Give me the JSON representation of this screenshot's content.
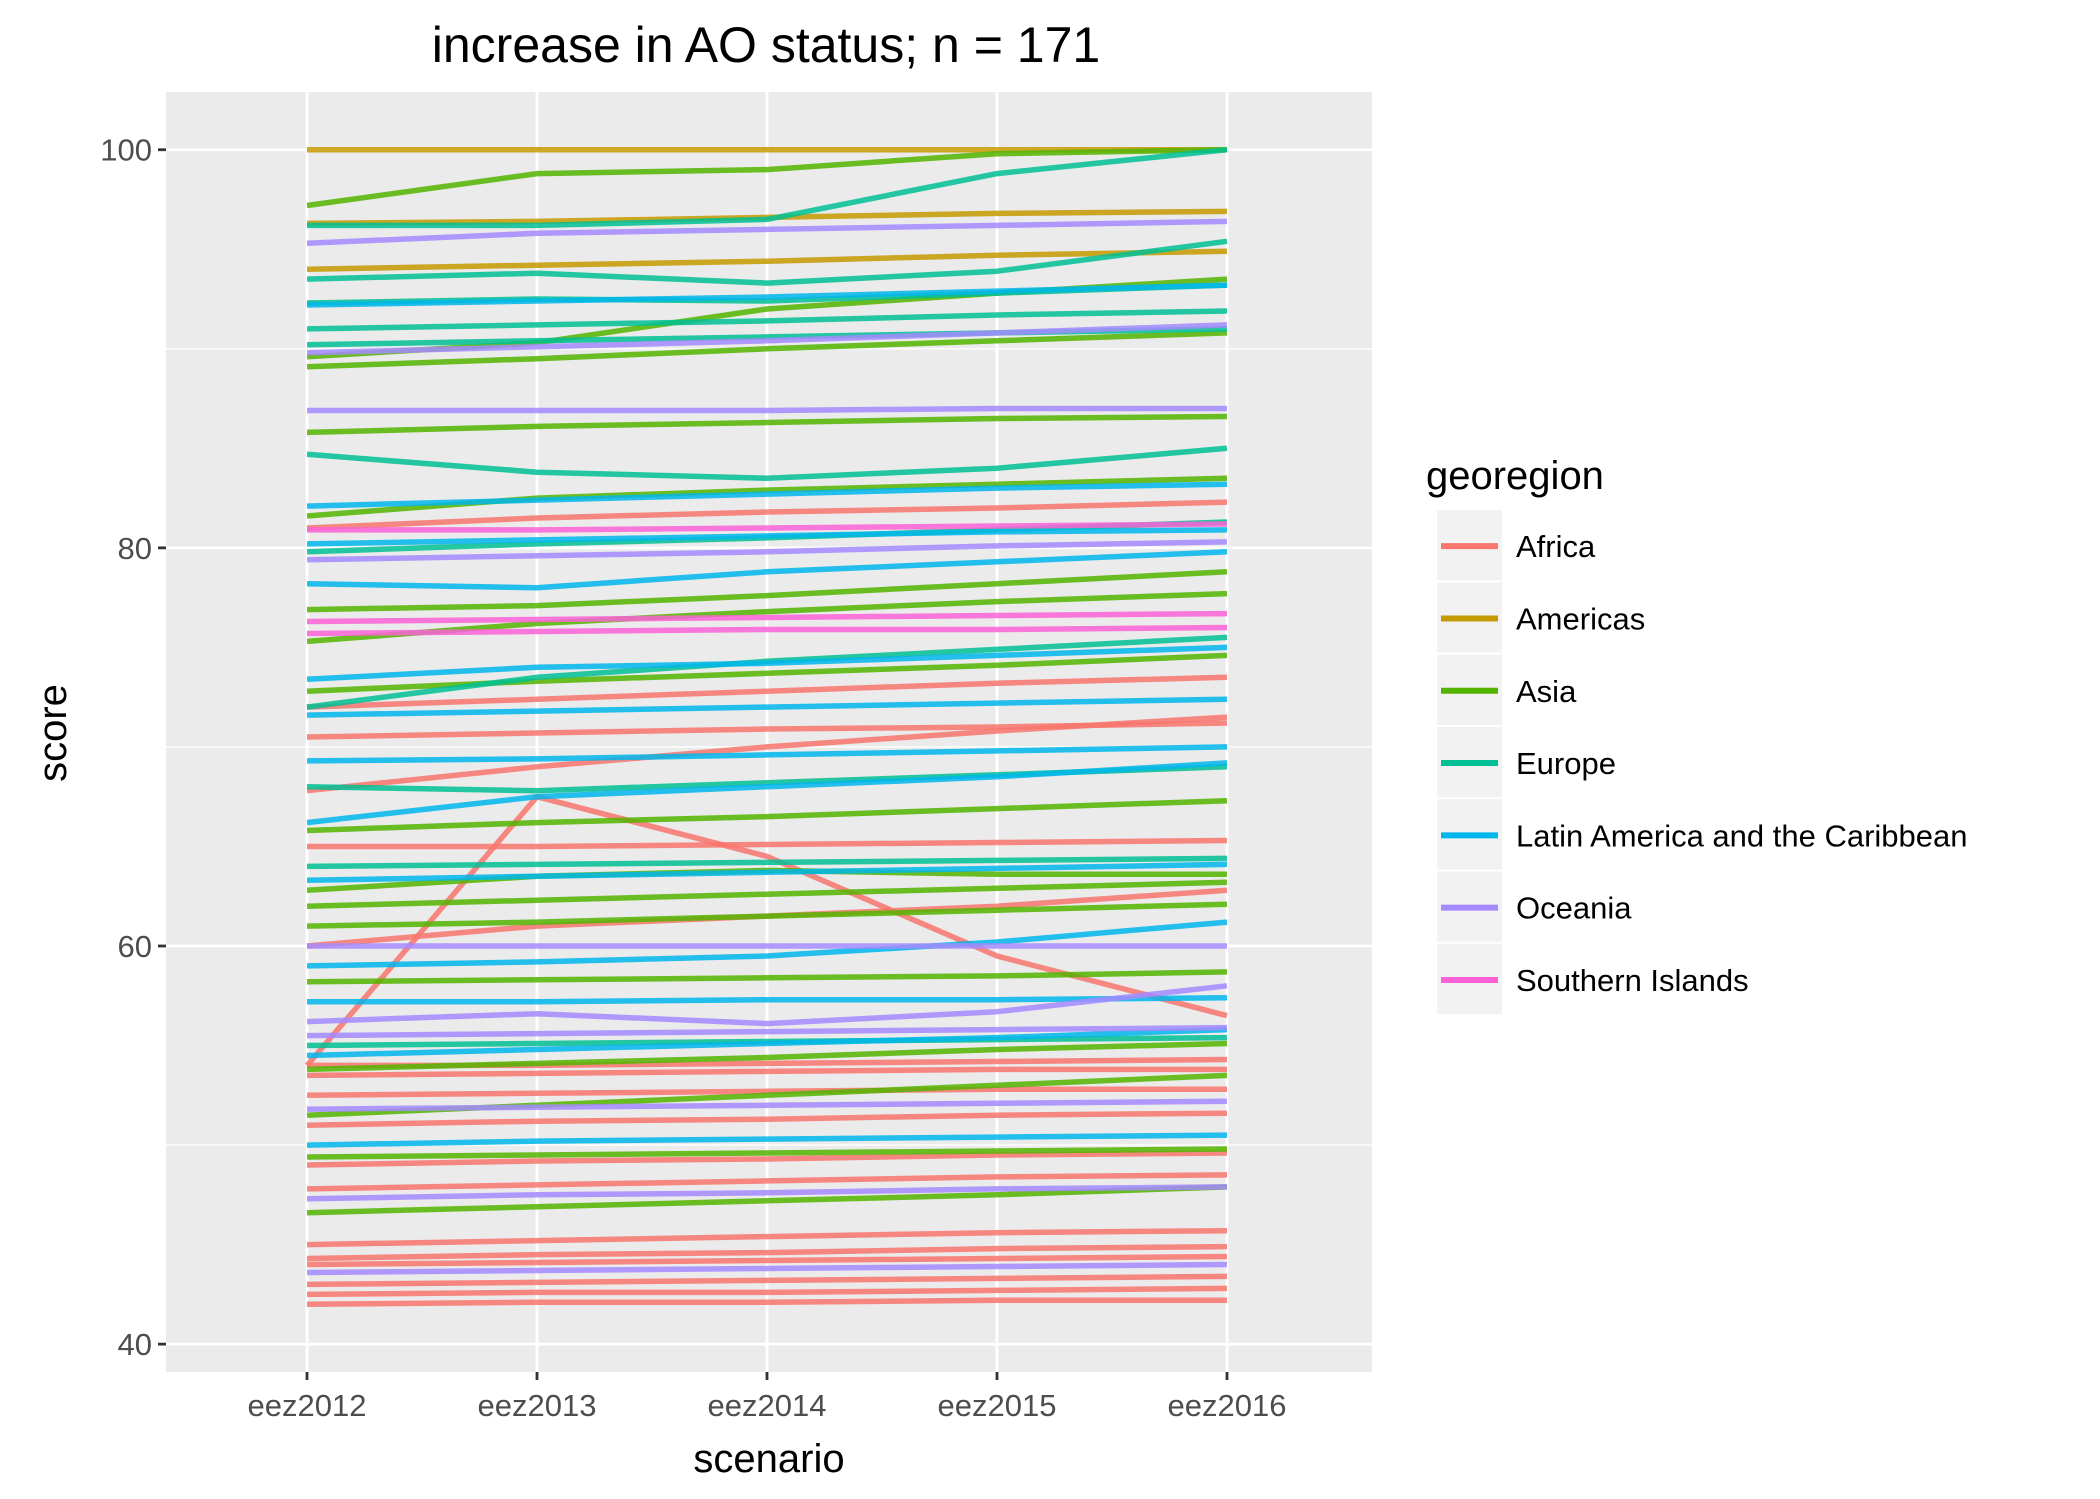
{
  "chart_data": {
    "type": "line",
    "title": "increase in AO status; n = 171",
    "xlabel": "scenario",
    "ylabel": "score",
    "categories": [
      "eez2012",
      "eez2013",
      "eez2014",
      "eez2015",
      "eez2016"
    ],
    "ylim": [
      38.6,
      102.9
    ],
    "yticks": [
      40,
      60,
      80,
      100
    ],
    "grid": true,
    "legend": {
      "title": "georegion",
      "position": "right",
      "entries": [
        {
          "name": "Africa",
          "color": "#F8766D"
        },
        {
          "name": "Americas",
          "color": "#C49A00"
        },
        {
          "name": "Asia",
          "color": "#53B400"
        },
        {
          "name": "Europe",
          "color": "#00C094"
        },
        {
          "name": "Latin America and the Caribbean",
          "color": "#00B6EB"
        },
        {
          "name": "Oceania",
          "color": "#A58AFF"
        },
        {
          "name": "Southern Islands",
          "color": "#FB61D7"
        }
      ]
    },
    "series": [
      {
        "group": "Africa",
        "values": [
          54.0,
          67.5,
          64.5,
          59.5,
          56.5
        ]
      },
      {
        "group": "Africa",
        "values": [
          67.8,
          69.0,
          70.0,
          70.8,
          71.5
        ]
      },
      {
        "group": "Africa",
        "values": [
          72.0,
          72.4,
          72.8,
          73.2,
          73.5
        ]
      },
      {
        "group": "Africa",
        "values": [
          70.5,
          70.7,
          70.9,
          71.0,
          71.2
        ]
      },
      {
        "group": "Africa",
        "values": [
          65.0,
          65.0,
          65.1,
          65.2,
          65.3
        ]
      },
      {
        "group": "Africa",
        "values": [
          60.0,
          61.0,
          61.5,
          62.0,
          62.8
        ]
      },
      {
        "group": "Africa",
        "values": [
          54.0,
          54.0,
          54.1,
          54.2,
          54.3
        ]
      },
      {
        "group": "Africa",
        "values": [
          53.5,
          53.6,
          53.7,
          53.8,
          53.8
        ]
      },
      {
        "group": "Africa",
        "values": [
          52.5,
          52.6,
          52.7,
          52.8,
          52.8
        ]
      },
      {
        "group": "Africa",
        "values": [
          51.0,
          51.2,
          51.3,
          51.5,
          51.6
        ]
      },
      {
        "group": "Africa",
        "values": [
          49.0,
          49.2,
          49.3,
          49.5,
          49.6
        ]
      },
      {
        "group": "Africa",
        "values": [
          47.8,
          48.0,
          48.2,
          48.4,
          48.5
        ]
      },
      {
        "group": "Africa",
        "values": [
          45.0,
          45.2,
          45.4,
          45.6,
          45.7
        ]
      },
      {
        "group": "Africa",
        "values": [
          44.3,
          44.5,
          44.6,
          44.8,
          44.9
        ]
      },
      {
        "group": "Africa",
        "values": [
          44.0,
          44.1,
          44.2,
          44.3,
          44.4
        ]
      },
      {
        "group": "Africa",
        "values": [
          43.0,
          43.1,
          43.2,
          43.3,
          43.4
        ]
      },
      {
        "group": "Africa",
        "values": [
          42.5,
          42.6,
          42.6,
          42.7,
          42.8
        ]
      },
      {
        "group": "Africa",
        "values": [
          42.0,
          42.1,
          42.1,
          42.2,
          42.2
        ]
      },
      {
        "group": "Africa",
        "values": [
          81.0,
          81.5,
          81.8,
          82.0,
          82.3
        ]
      },
      {
        "group": "Americas",
        "values": [
          100.0,
          100.0,
          100.0,
          100.0,
          100.0
        ]
      },
      {
        "group": "Americas",
        "values": [
          96.3,
          96.4,
          96.6,
          96.8,
          96.9
        ]
      },
      {
        "group": "Americas",
        "values": [
          94.0,
          94.2,
          94.4,
          94.7,
          94.9
        ]
      },
      {
        "group": "Asia",
        "values": [
          97.2,
          98.8,
          99.0,
          99.8,
          100.0
        ]
      },
      {
        "group": "Asia",
        "values": [
          89.1,
          89.5,
          90.0,
          90.4,
          90.8
        ]
      },
      {
        "group": "Asia",
        "values": [
          89.6,
          90.3,
          92.0,
          92.8,
          93.5
        ]
      },
      {
        "group": "Asia",
        "values": [
          85.8,
          86.1,
          86.3,
          86.5,
          86.6
        ]
      },
      {
        "group": "Asia",
        "values": [
          81.6,
          82.5,
          82.9,
          83.2,
          83.5
        ]
      },
      {
        "group": "Asia",
        "values": [
          76.9,
          77.1,
          77.6,
          78.2,
          78.8
        ]
      },
      {
        "group": "Asia",
        "values": [
          75.3,
          76.2,
          76.8,
          77.3,
          77.7
        ]
      },
      {
        "group": "Asia",
        "values": [
          72.8,
          73.3,
          73.7,
          74.1,
          74.6
        ]
      },
      {
        "group": "Asia",
        "values": [
          65.8,
          66.2,
          66.5,
          66.9,
          67.3
        ]
      },
      {
        "group": "Asia",
        "values": [
          62.8,
          63.5,
          63.8,
          63.6,
          63.6
        ]
      },
      {
        "group": "Asia",
        "values": [
          62.0,
          62.3,
          62.6,
          62.9,
          63.2
        ]
      },
      {
        "group": "Asia",
        "values": [
          61.0,
          61.2,
          61.5,
          61.8,
          62.1
        ]
      },
      {
        "group": "Asia",
        "values": [
          58.2,
          58.3,
          58.4,
          58.5,
          58.7
        ]
      },
      {
        "group": "Asia",
        "values": [
          53.8,
          54.1,
          54.4,
          54.8,
          55.1
        ]
      },
      {
        "group": "Asia",
        "values": [
          51.5,
          52.0,
          52.5,
          53.0,
          53.5
        ]
      },
      {
        "group": "Asia",
        "values": [
          49.4,
          49.5,
          49.6,
          49.7,
          49.8
        ]
      },
      {
        "group": "Asia",
        "values": [
          46.6,
          46.9,
          47.2,
          47.5,
          47.9
        ]
      },
      {
        "group": "Europe",
        "values": [
          96.2,
          96.2,
          96.5,
          98.8,
          100.0
        ]
      },
      {
        "group": "Europe",
        "values": [
          93.5,
          93.8,
          93.3,
          93.9,
          95.4
        ]
      },
      {
        "group": "Europe",
        "values": [
          92.3,
          92.5,
          92.4,
          92.8,
          93.2
        ]
      },
      {
        "group": "Europe",
        "values": [
          91.0,
          91.2,
          91.4,
          91.7,
          91.9
        ]
      },
      {
        "group": "Europe",
        "values": [
          90.2,
          90.4,
          90.6,
          90.8,
          91.0
        ]
      },
      {
        "group": "Europe",
        "values": [
          84.7,
          83.8,
          83.5,
          84.0,
          85.0
        ]
      },
      {
        "group": "Europe",
        "values": [
          79.8,
          80.2,
          80.5,
          80.9,
          81.3
        ]
      },
      {
        "group": "Europe",
        "values": [
          72.0,
          73.5,
          74.3,
          74.9,
          75.5
        ]
      },
      {
        "group": "Europe",
        "values": [
          68.0,
          67.8,
          68.2,
          68.6,
          69.0
        ]
      },
      {
        "group": "Europe",
        "values": [
          64.0,
          64.1,
          64.2,
          64.3,
          64.4
        ]
      },
      {
        "group": "Europe",
        "values": [
          55.0,
          55.1,
          55.2,
          55.3,
          55.4
        ]
      },
      {
        "group": "Latin America and the Caribbean",
        "values": [
          92.2,
          92.4,
          92.6,
          92.9,
          93.2
        ]
      },
      {
        "group": "Latin America and the Caribbean",
        "values": [
          82.1,
          82.4,
          82.7,
          83.0,
          83.2
        ]
      },
      {
        "group": "Latin America and the Caribbean",
        "values": [
          80.2,
          80.4,
          80.6,
          80.8,
          80.9
        ]
      },
      {
        "group": "Latin America and the Caribbean",
        "values": [
          78.2,
          78.0,
          78.8,
          79.3,
          79.8
        ]
      },
      {
        "group": "Latin America and the Caribbean",
        "values": [
          73.4,
          74.0,
          74.2,
          74.6,
          75.0
        ]
      },
      {
        "group": "Latin America and the Caribbean",
        "values": [
          71.6,
          71.8,
          72.0,
          72.2,
          72.4
        ]
      },
      {
        "group": "Latin America and the Caribbean",
        "values": [
          69.3,
          69.4,
          69.6,
          69.8,
          70.0
        ]
      },
      {
        "group": "Latin America and the Caribbean",
        "values": [
          66.2,
          67.5,
          68.0,
          68.5,
          69.2
        ]
      },
      {
        "group": "Latin America and the Caribbean",
        "values": [
          63.3,
          63.5,
          63.7,
          63.9,
          64.1
        ]
      },
      {
        "group": "Latin America and the Caribbean",
        "values": [
          59.0,
          59.2,
          59.5,
          60.2,
          61.2
        ]
      },
      {
        "group": "Latin America and the Caribbean",
        "values": [
          57.2,
          57.2,
          57.3,
          57.3,
          57.4
        ]
      },
      {
        "group": "Latin America and the Caribbean",
        "values": [
          54.5,
          54.8,
          55.1,
          55.4,
          55.8
        ]
      },
      {
        "group": "Latin America and the Caribbean",
        "values": [
          50.0,
          50.2,
          50.3,
          50.4,
          50.5
        ]
      },
      {
        "group": "Oceania",
        "values": [
          95.3,
          95.8,
          96.0,
          96.2,
          96.4
        ]
      },
      {
        "group": "Oceania",
        "values": [
          89.8,
          90.1,
          90.4,
          90.8,
          91.2
        ]
      },
      {
        "group": "Oceania",
        "values": [
          86.9,
          86.9,
          86.9,
          87.0,
          87.0
        ]
      },
      {
        "group": "Oceania",
        "values": [
          79.4,
          79.6,
          79.8,
          80.1,
          80.3
        ]
      },
      {
        "group": "Oceania",
        "values": [
          56.2,
          56.6,
          56.1,
          56.7,
          58.0
        ]
      },
      {
        "group": "Oceania",
        "values": [
          60.0,
          60.0,
          60.0,
          60.0,
          60.0
        ]
      },
      {
        "group": "Oceania",
        "values": [
          55.5,
          55.6,
          55.7,
          55.8,
          55.9
        ]
      },
      {
        "group": "Oceania",
        "values": [
          51.8,
          51.9,
          52.0,
          52.1,
          52.2
        ]
      },
      {
        "group": "Oceania",
        "values": [
          47.3,
          47.5,
          47.6,
          47.8,
          47.9
        ]
      },
      {
        "group": "Oceania",
        "values": [
          43.6,
          43.7,
          43.8,
          43.9,
          44.0
        ]
      },
      {
        "group": "Southern Islands",
        "values": [
          80.9,
          80.9,
          81.0,
          81.1,
          81.2
        ]
      },
      {
        "group": "Southern Islands",
        "values": [
          76.3,
          76.4,
          76.5,
          76.6,
          76.7
        ]
      },
      {
        "group": "Southern Islands",
        "values": [
          75.7,
          75.8,
          75.9,
          75.9,
          76.0
        ]
      }
    ]
  }
}
